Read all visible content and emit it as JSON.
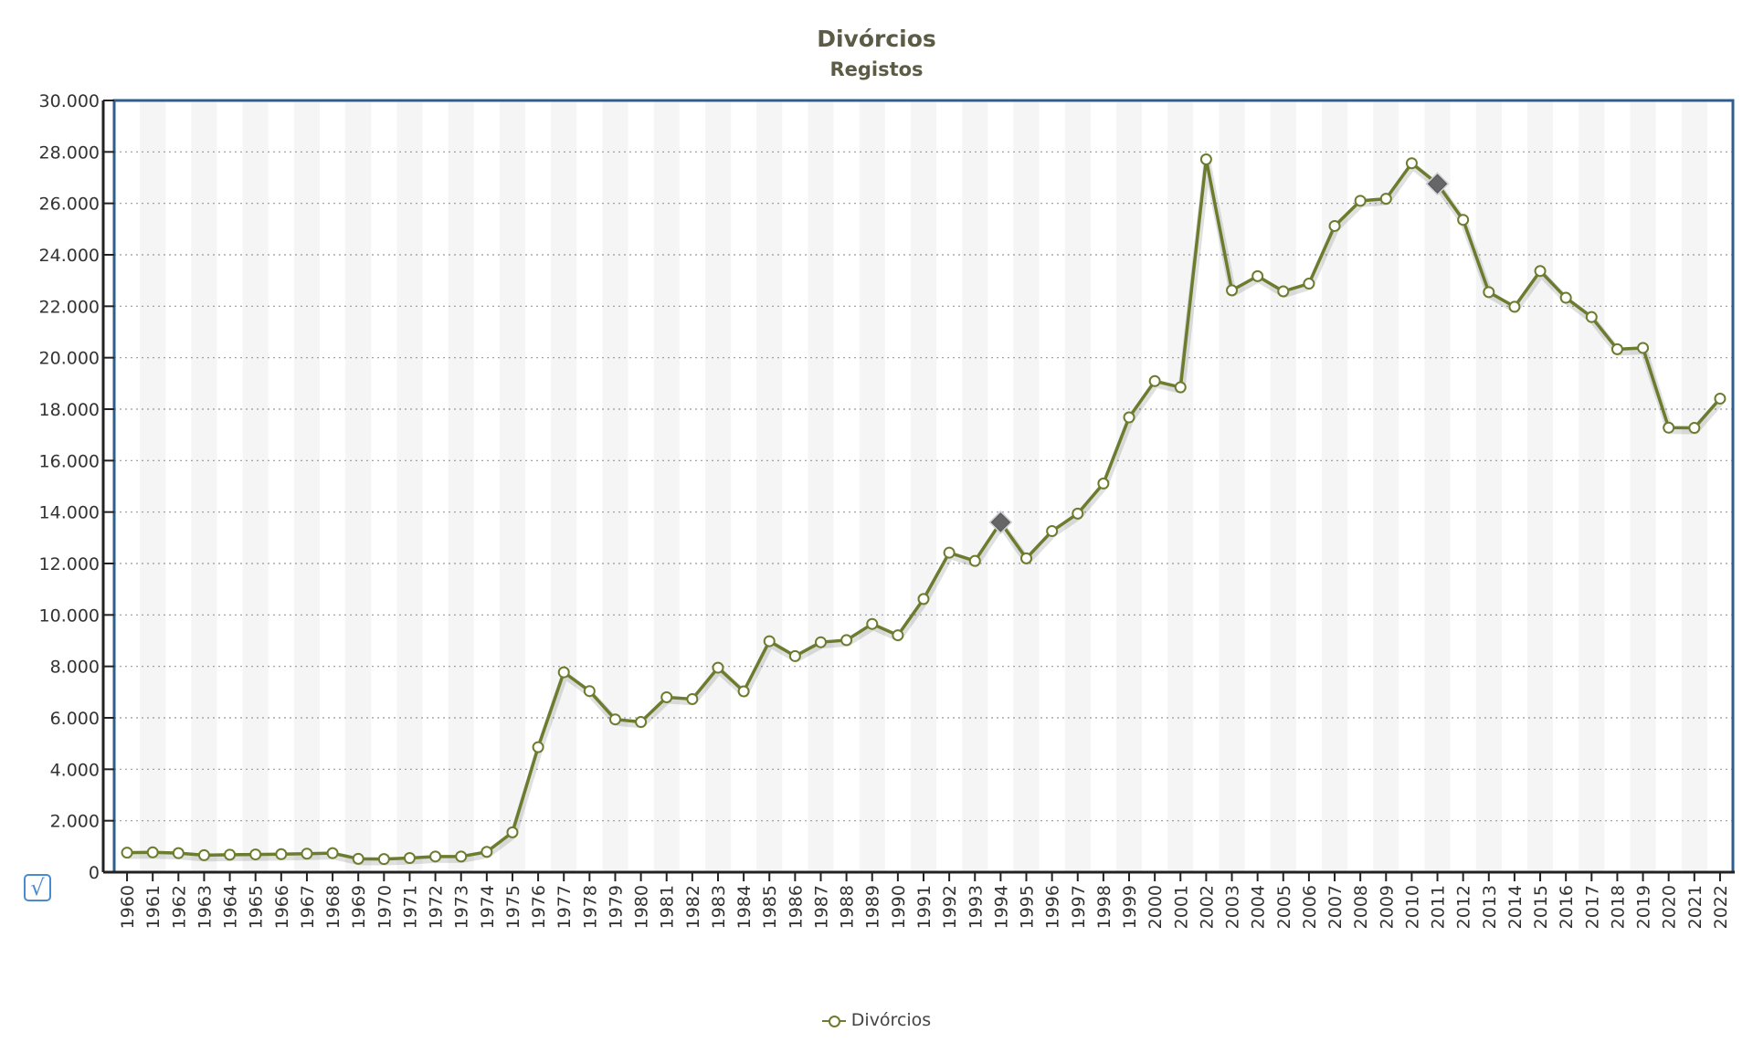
{
  "chart_data": {
    "type": "line",
    "title": "Divórcios",
    "subtitle": "Registos",
    "x": [
      "1960",
      "1961",
      "1962",
      "1963",
      "1964",
      "1965",
      "1966",
      "1967",
      "1968",
      "1969",
      "1970",
      "1971",
      "1972",
      "1973",
      "1974",
      "1975",
      "1976",
      "1977",
      "1978",
      "1979",
      "1980",
      "1981",
      "1982",
      "1983",
      "1984",
      "1985",
      "1986",
      "1987",
      "1988",
      "1989",
      "1990",
      "1991",
      "1992",
      "1993",
      "1994",
      "1995",
      "1996",
      "1997",
      "1998",
      "1999",
      "2000",
      "2001",
      "2002",
      "2003",
      "2004",
      "2005",
      "2006",
      "2007",
      "2008",
      "2009",
      "2010",
      "2011",
      "2012",
      "2013",
      "2014",
      "2015",
      "2016",
      "2017",
      "2018",
      "2019",
      "2020",
      "2021",
      "2022"
    ],
    "series": [
      {
        "name": "Divórcios",
        "values": [
          760,
          770,
          740,
          660,
          680,
          690,
          700,
          720,
          740,
          520,
          510,
          550,
          610,
          610,
          790,
          1550,
          4860,
          7770,
          7040,
          5940,
          5840,
          6800,
          6730,
          7950,
          7030,
          8980,
          8400,
          8940,
          9020,
          9650,
          9210,
          10620,
          12420,
          12100,
          13600,
          12200,
          13260,
          13940,
          15110,
          17680,
          19090,
          18850,
          27710,
          22620,
          23170,
          22580,
          22880,
          25120,
          26100,
          26180,
          27560,
          26760,
          25360,
          22550,
          21980,
          23370,
          22330,
          21580,
          20330,
          20380,
          17280,
          17270,
          18410
        ],
        "highlighted_points": [
          "1994",
          "2011"
        ]
      }
    ],
    "yticks": [
      "0",
      "2.000",
      "4.000",
      "6.000",
      "8.000",
      "10.000",
      "12.000",
      "14.000",
      "16.000",
      "18.000",
      "20.000",
      "22.000",
      "24.000",
      "26.000",
      "28.000",
      "30.000"
    ],
    "ylim": [
      0,
      30000
    ],
    "grid": "horizontal dotted",
    "legend_position": "bottom-center",
    "colors": {
      "line": "#6b7c2e",
      "marker_fill": "#ffffff",
      "highlight": "#666666",
      "frame": "#2e5e8e",
      "band": "#f5f5f5"
    }
  },
  "legend": {
    "label": "Divórcios"
  },
  "select_icon": "checkbox-icon",
  "select_glyph": "√"
}
